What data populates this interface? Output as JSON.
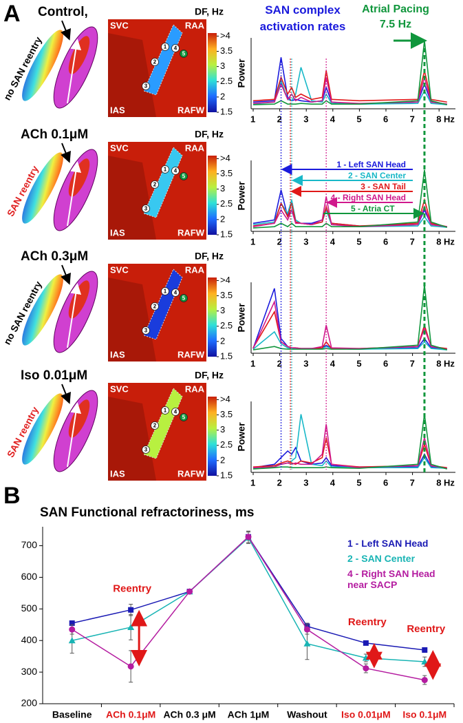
{
  "panel_a": {
    "label": "A",
    "rows": [
      {
        "condition": "Control,",
        "reentry": "no SAN reentry",
        "reentry_color": "#000000"
      },
      {
        "condition": "ACh 0.1μM",
        "reentry": "SAN reentry",
        "reentry_color": "#e02020"
      },
      {
        "condition": "ACh 0.3μM",
        "reentry": "no SAN reentry",
        "reentry_color": "#000000"
      },
      {
        "condition": "Iso 0.01μM",
        "reentry": "SAN reentry",
        "reentry_color": "#e02020"
      }
    ],
    "map_labels": {
      "top_left": "SVC",
      "top_right": "RAA",
      "bottom_left": "IAS",
      "bottom_right": "RAFW"
    },
    "sites": [
      "1",
      "2",
      "3",
      "4",
      "5"
    ],
    "colorbar": {
      "title": "DF, Hz",
      "ticks": [
        {
          "value": 4,
          "label": ">4"
        },
        3.5,
        3,
        2.5,
        2,
        1.5
      ],
      "lim": [
        1.5,
        4.1
      ]
    },
    "rates_annotation": [
      "SAN complex",
      "activation rates"
    ],
    "pacing_annotation": [
      "Atrial  Pacing",
      "7.5 Hz"
    ],
    "site_legend": [
      {
        "text": "1 - Left SAN Head",
        "color": "#1a1adc",
        "target": 2.05
      },
      {
        "text": "2 - SAN Center",
        "color": "#18b8c8",
        "target": 2.45
      },
      {
        "text": "3 - SAN Tail",
        "color": "#e01818",
        "target": 2.4
      },
      {
        "text": "4 - Right SAN Head",
        "color": "#d0188c",
        "target": 3.75
      },
      {
        "text": "5 - Atria CT",
        "color": "#10963c",
        "target": 7.45
      }
    ],
    "rate_lines": [
      {
        "x": 2.05,
        "color": "#1a1adc"
      },
      {
        "x": 2.4,
        "color": "#e01818"
      },
      {
        "x": 2.45,
        "color": "#18b8c8"
      },
      {
        "x": 3.75,
        "color": "#d0188c"
      },
      {
        "x": 7.45,
        "color": "#10963c"
      }
    ],
    "spectrum": {
      "ylabel": "Power",
      "xlim": [
        0.9,
        8.3
      ],
      "xticks": [
        1,
        2,
        3,
        4,
        5,
        6,
        7,
        {
          "value": 8,
          "label": "8 Hz"
        }
      ],
      "x": [
        1,
        1.8,
        2.05,
        2.3,
        2.45,
        2.6,
        2.8,
        3.2,
        3.6,
        3.75,
        3.95,
        5,
        7.2,
        7.45,
        7.7,
        8.3
      ],
      "rows": [
        [
          {
            "color": "#1a1adc",
            "values": [
              0.08,
              0.1,
              0.75,
              0.15,
              0.1,
              0.12,
              0.1,
              0.08,
              0.1,
              0.3,
              0.08,
              0.05,
              0.08,
              0.35,
              0.08,
              0.05
            ]
          },
          {
            "color": "#18b8c8",
            "values": [
              0.05,
              0.08,
              0.4,
              0.12,
              0.1,
              0.2,
              0.6,
              0.1,
              0.08,
              0.2,
              0.06,
              0.05,
              0.06,
              0.25,
              0.06,
              0.04
            ]
          },
          {
            "color": "#e01818",
            "values": [
              0.1,
              0.12,
              0.45,
              0.2,
              0.3,
              0.15,
              0.2,
              0.12,
              0.15,
              0.55,
              0.12,
              0.1,
              0.12,
              0.55,
              0.12,
              0.08
            ]
          },
          {
            "color": "#d0188c",
            "values": [
              0.06,
              0.08,
              0.35,
              0.12,
              0.2,
              0.1,
              0.15,
              0.08,
              0.1,
              0.45,
              0.08,
              0.06,
              0.08,
              0.45,
              0.08,
              0.05
            ]
          },
          {
            "color": "#10963c",
            "values": [
              0.04,
              0.05,
              0.1,
              0.05,
              0.05,
              0.05,
              0.06,
              0.05,
              0.05,
              0.1,
              0.05,
              0.05,
              0.1,
              1.0,
              0.1,
              0.04
            ]
          }
        ],
        [
          {
            "color": "#1a1adc",
            "values": [
              0.1,
              0.15,
              0.6,
              0.2,
              0.3,
              0.12,
              0.1,
              0.1,
              0.15,
              0.3,
              0.1,
              0.06,
              0.08,
              0.3,
              0.08,
              0.05
            ]
          },
          {
            "color": "#18b8c8",
            "values": [
              0.08,
              0.12,
              0.4,
              0.25,
              0.45,
              0.15,
              0.1,
              0.08,
              0.12,
              0.3,
              0.08,
              0.05,
              0.06,
              0.2,
              0.06,
              0.04
            ]
          },
          {
            "color": "#e01818",
            "values": [
              0.06,
              0.1,
              0.4,
              0.2,
              0.4,
              0.12,
              0.1,
              0.08,
              0.12,
              0.35,
              0.1,
              0.06,
              0.1,
              0.45,
              0.1,
              0.05
            ]
          },
          {
            "color": "#d0188c",
            "values": [
              0.05,
              0.1,
              0.3,
              0.15,
              0.3,
              0.1,
              0.1,
              0.08,
              0.15,
              0.5,
              0.08,
              0.05,
              0.08,
              0.35,
              0.08,
              0.05
            ]
          },
          {
            "color": "#10963c",
            "values": [
              0.03,
              0.05,
              0.1,
              0.05,
              0.1,
              0.05,
              0.05,
              0.05,
              0.05,
              0.1,
              0.05,
              0.05,
              0.12,
              0.9,
              0.12,
              0.04
            ]
          }
        ],
        [
          {
            "color": "#1a1adc",
            "values": [
              0.05,
              0.95,
              0.2,
              0.08,
              0.06,
              0.05,
              0.05,
              0.05,
              0.06,
              0.1,
              0.05,
              0.04,
              0.06,
              0.2,
              0.06,
              0.04
            ]
          },
          {
            "color": "#18b8c8",
            "values": [
              0.04,
              0.3,
              0.12,
              0.06,
              0.05,
              0.05,
              0.05,
              0.05,
              0.05,
              0.08,
              0.05,
              0.04,
              0.05,
              0.15,
              0.05,
              0.03
            ]
          },
          {
            "color": "#e01818",
            "values": [
              0.06,
              0.6,
              0.15,
              0.08,
              0.06,
              0.06,
              0.05,
              0.05,
              0.06,
              0.15,
              0.05,
              0.05,
              0.08,
              0.4,
              0.08,
              0.05
            ]
          },
          {
            "color": "#d0188c",
            "values": [
              0.05,
              0.75,
              0.15,
              0.08,
              0.06,
              0.06,
              0.05,
              0.05,
              0.08,
              0.4,
              0.06,
              0.05,
              0.08,
              0.35,
              0.08,
              0.04
            ]
          },
          {
            "color": "#10963c",
            "values": [
              0.03,
              0.08,
              0.05,
              0.04,
              0.04,
              0.04,
              0.04,
              0.04,
              0.04,
              0.05,
              0.04,
              0.04,
              0.1,
              1.0,
              0.1,
              0.03
            ]
          }
        ],
        [
          {
            "color": "#1a1adc",
            "values": [
              0.05,
              0.1,
              0.2,
              0.3,
              0.25,
              0.35,
              0.15,
              0.1,
              0.12,
              0.2,
              0.08,
              0.06,
              0.06,
              0.25,
              0.06,
              0.04
            ]
          },
          {
            "color": "#18b8c8",
            "values": [
              0.04,
              0.08,
              0.1,
              0.12,
              0.15,
              0.2,
              0.85,
              0.1,
              0.08,
              0.15,
              0.06,
              0.05,
              0.05,
              0.2,
              0.05,
              0.04
            ]
          },
          {
            "color": "#e01818",
            "values": [
              0.06,
              0.08,
              0.12,
              0.15,
              0.12,
              0.1,
              0.15,
              0.12,
              0.2,
              0.5,
              0.1,
              0.06,
              0.08,
              0.4,
              0.08,
              0.05
            ]
          },
          {
            "color": "#d0188c",
            "values": [
              0.05,
              0.06,
              0.1,
              0.12,
              0.1,
              0.12,
              0.1,
              0.1,
              0.25,
              0.7,
              0.1,
              0.05,
              0.08,
              0.5,
              0.08,
              0.04
            ]
          },
          {
            "color": "#10963c",
            "values": [
              0.03,
              0.05,
              0.06,
              0.06,
              0.05,
              0.05,
              0.05,
              0.05,
              0.05,
              0.06,
              0.05,
              0.04,
              0.1,
              0.85,
              0.1,
              0.03
            ]
          }
        ]
      ]
    }
  },
  "chart_data": {
    "type": "line",
    "panel_label": "B",
    "title": "SAN Functional refractoriness, ms",
    "categories": [
      "Baseline",
      "ACh 0.1μM",
      "ACh 0.3 μM",
      "ACh 1μM",
      "Washout",
      "Iso 0.01μM",
      "Iso 0.1μM"
    ],
    "category_colors": [
      "#000000",
      "#e01818",
      "#000000",
      "#000000",
      "#000000",
      "#e01818",
      "#e01818"
    ],
    "ylim": [
      200,
      760
    ],
    "yticks": [
      200,
      300,
      400,
      500,
      600,
      700
    ],
    "series": [
      {
        "name": [
          "1 - Left SAN Head"
        ],
        "color": "#1a1ab4",
        "marker": "square",
        "values": [
          455,
          497,
          555,
          728,
          445,
          392,
          370
        ],
        "errors": [
          6,
          18,
          6,
          18,
          10,
          6,
          6
        ]
      },
      {
        "name": [
          "2 - SAN Center"
        ],
        "color": "#18b4b4",
        "marker": "triangle",
        "values": [
          400,
          442,
          555,
          725,
          390,
          345,
          333
        ],
        "errors": [
          40,
          40,
          6,
          18,
          50,
          12,
          15
        ]
      },
      {
        "name": [
          "4 - Right SAN Head",
          "near SACP"
        ],
        "color": "#b41ca0",
        "marker": "circle",
        "values": [
          435,
          318,
          555,
          728,
          435,
          312,
          275
        ],
        "errors": [
          15,
          50,
          6,
          18,
          15,
          14,
          14
        ]
      }
    ],
    "annotations": [
      {
        "text": "Reentry",
        "category": 1
      },
      {
        "text": "Reentry",
        "category": 5
      },
      {
        "text": "Reentry",
        "category": 6
      }
    ],
    "annotation_color": "#e01818"
  }
}
